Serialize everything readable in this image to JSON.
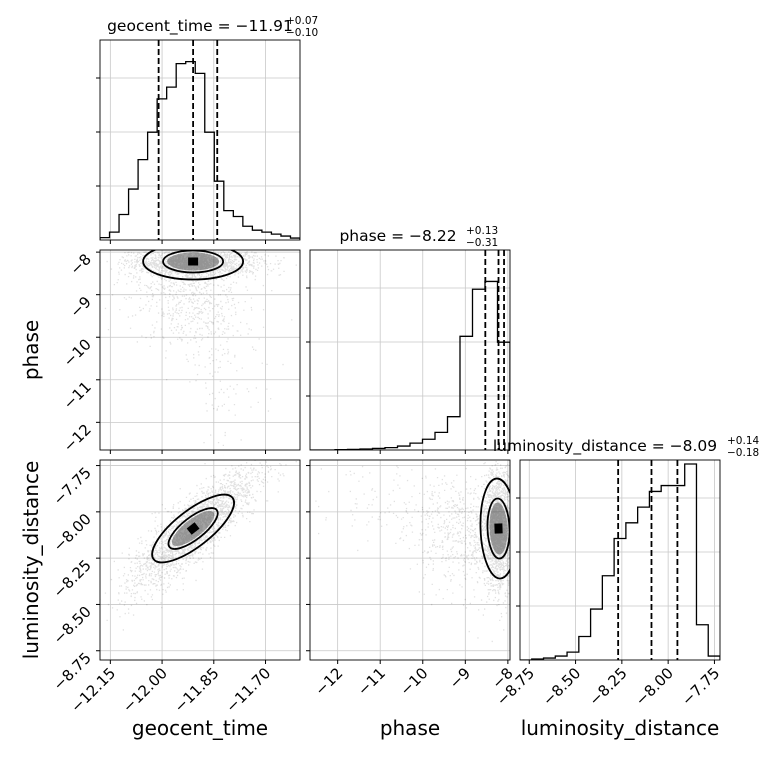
{
  "chart_data": {
    "type": "corner",
    "parameters": [
      "geocent_time",
      "phase",
      "luminosity_distance"
    ],
    "titles": [
      {
        "param": "geocent_time",
        "text": "geocent_time = −11.91",
        "sup": "+0.07",
        "sub": "−0.10"
      },
      {
        "param": "phase",
        "text": "phase = −8.22",
        "sup": "+0.13",
        "sub": "−0.31"
      },
      {
        "param": "luminosity_distance",
        "text": "luminosity_distance = −8.09",
        "sup": "+0.14",
        "sub": "−0.18"
      }
    ],
    "xlabels": [
      "geocent_time",
      "phase",
      "luminosity_distance"
    ],
    "ylabels": [
      "",
      "phase",
      "luminosity_distance"
    ],
    "ranges": {
      "geocent_time": [
        -12.18,
        -11.6
      ],
      "phase": [
        -12.65,
        -7.95
      ],
      "luminosity_distance": [
        -8.8,
        -7.72
      ]
    },
    "ticks": {
      "geocent_time": {
        "values": [
          -12.15,
          -12.0,
          -11.85,
          -11.7
        ],
        "labels": [
          "−12.15",
          "−12.00",
          "−11.85",
          "−11.70"
        ]
      },
      "phase": {
        "values": [
          -12,
          -11,
          -10,
          -9,
          -8
        ],
        "labels": [
          "−12",
          "−11",
          "−10",
          "−9",
          "−8"
        ]
      },
      "luminosity_distance": {
        "values": [
          -8.75,
          -8.5,
          -8.25,
          -8.0,
          -7.75
        ],
        "labels": [
          "−8.75",
          "−8.50",
          "−8.25",
          "−8.00",
          "−7.75"
        ]
      }
    },
    "histograms": {
      "geocent_time": [
        0.012,
        0.04,
        0.13,
        0.26,
        0.41,
        0.55,
        0.72,
        0.78,
        0.9,
        0.91,
        0.85,
        0.55,
        0.3,
        0.15,
        0.12,
        0.07,
        0.05,
        0.04,
        0.03,
        0.02,
        0.01
      ],
      "phase": [
        0.0,
        0.0,
        0.002,
        0.003,
        0.005,
        0.008,
        0.012,
        0.02,
        0.035,
        0.055,
        0.09,
        0.17,
        0.58,
        0.82,
        0.86,
        0.55
      ],
      "luminosity_distance": [
        0.0,
        0.005,
        0.01,
        0.02,
        0.04,
        0.12,
        0.26,
        0.43,
        0.62,
        0.7,
        0.78,
        0.86,
        0.89,
        0.89,
        1.0,
        0.18,
        0.02
      ]
    },
    "quantiles": {
      "geocent_time": [
        -12.01,
        -11.91,
        -11.84
      ],
      "phase": [
        -8.53,
        -8.22,
        -8.09
      ],
      "luminosity_distance": [
        -8.27,
        -8.09,
        -7.95
      ]
    },
    "grid": true
  }
}
